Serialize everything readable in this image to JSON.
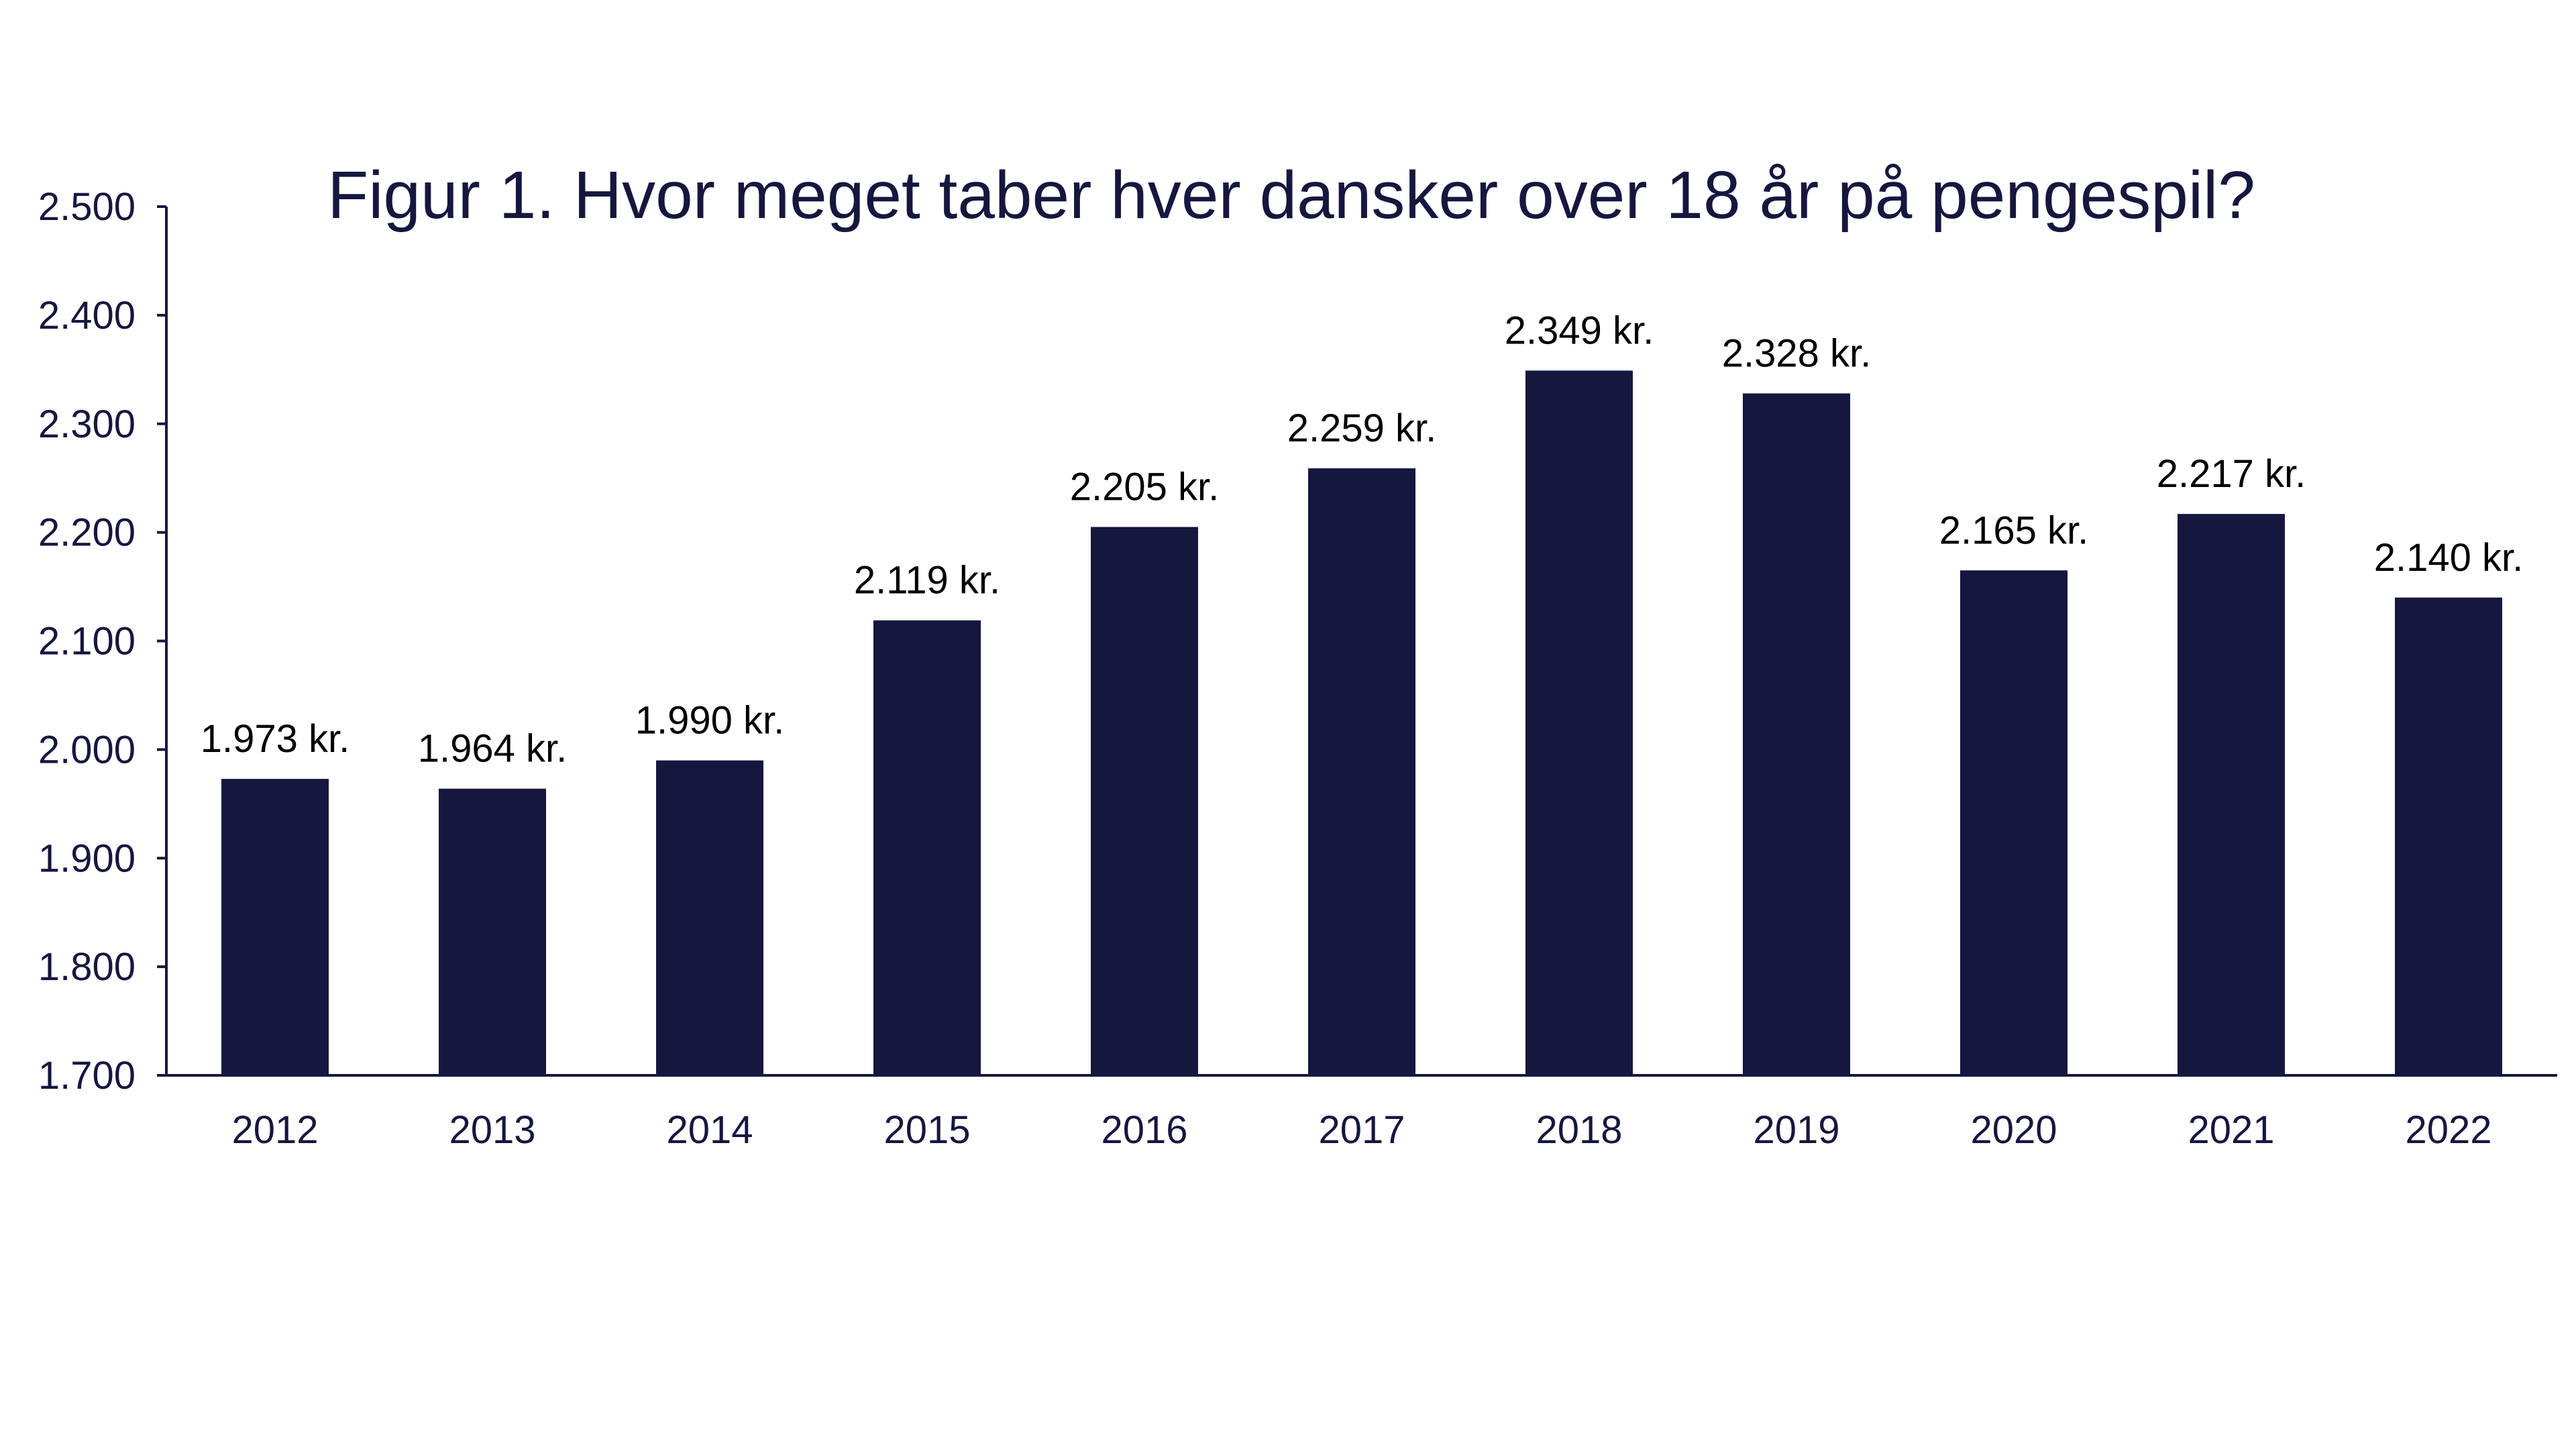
{
  "chart_data": {
    "type": "bar",
    "title": "Figur 1. Hvor meget taber  hver dansker over 18 år på pengespil?",
    "xlabel": "",
    "ylabel": "",
    "categories": [
      "2012",
      "2013",
      "2014",
      "2015",
      "2016",
      "2017",
      "2018",
      "2019",
      "2020",
      "2021",
      "2022"
    ],
    "values": [
      1973,
      1964,
      1990,
      2119,
      2205,
      2259,
      2349,
      2328,
      2165,
      2217,
      2140
    ],
    "data_labels": [
      "1.973 kr.",
      "1.964 kr.",
      "1.990 kr.",
      "2.119 kr.",
      "2.205 kr.",
      "2.259 kr.",
      "2.349 kr.",
      "2.328 kr.",
      "2.165 kr.",
      "2.217 kr.",
      "2.140 kr."
    ],
    "ylim": [
      1700,
      2500
    ],
    "yticks": [
      1700,
      1800,
      1900,
      2000,
      2100,
      2200,
      2300,
      2400,
      2500
    ],
    "ytick_labels": [
      "1.700",
      "1.800",
      "1.900",
      "2.000",
      "2.100",
      "2.200",
      "2.300",
      "2.400",
      "2.500"
    ],
    "grid": false,
    "legend": "none",
    "colors": {
      "bar": "#16173f",
      "axis": "#16173f",
      "text": "#16173f",
      "data_label": "#000000"
    }
  }
}
